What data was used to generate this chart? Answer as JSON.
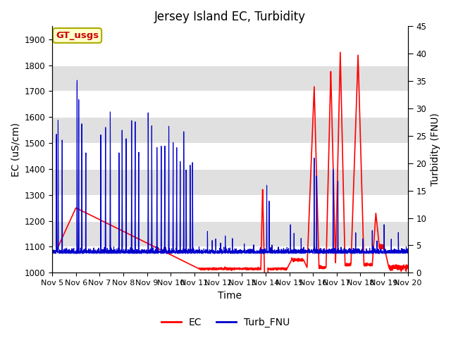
{
  "title": "Jersey Island EC, Turbidity",
  "xlabel": "Time",
  "ylabel_left": "EC (uS/cm)",
  "ylabel_right": "Turbidity (FNU)",
  "ylim_left": [
    1000,
    1950
  ],
  "ylim_right": [
    0,
    45
  ],
  "yticks_left": [
    1000,
    1100,
    1200,
    1300,
    1400,
    1500,
    1600,
    1700,
    1800,
    1900
  ],
  "yticks_right": [
    0,
    5,
    10,
    15,
    20,
    25,
    30,
    35,
    40,
    45
  ],
  "legend_labels": [
    "EC",
    "Turb_FNU"
  ],
  "ec_color": "#ff0000",
  "turb_color": "#0000cc",
  "annotation_text": "GT_usgs",
  "annotation_bg": "#ffffcc",
  "annotation_fg": "#cc0000",
  "annotation_border": "#aaaa00",
  "bg_band_color": "#e0e0e0",
  "title_fontsize": 12,
  "axis_fontsize": 10,
  "tick_fontsize": 8.5,
  "xtick_positions": [
    5,
    6,
    7,
    8,
    9,
    10,
    11,
    12,
    13,
    14,
    15,
    16,
    17,
    18,
    19,
    20
  ],
  "xtick_labels": [
    "Nov 5",
    "Nov 6",
    "Nov 7",
    "Nov 8",
    "Nov 9",
    "Nov 10",
    "Nov 11",
    "Nov 12",
    "Nov 13",
    "Nov 14",
    "Nov 15",
    "Nov 16",
    "Nov 17",
    "Nov 18",
    "Nov 19",
    "Nov 20"
  ]
}
